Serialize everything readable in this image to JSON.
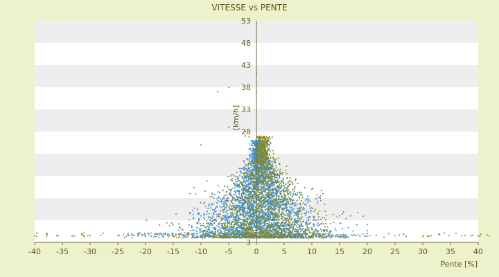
{
  "chart_data": {
    "type": "scatter",
    "title": "VITESSE vs PENTE",
    "xlabel": "Pente [%]",
    "ylabel": "[km/h]",
    "xlim": [
      -40,
      40
    ],
    "ylim": [
      3,
      53
    ],
    "x_ticks": [
      -40,
      -35,
      -30,
      -25,
      -20,
      -15,
      -10,
      -5,
      0,
      5,
      10,
      15,
      20,
      25,
      30,
      35,
      40
    ],
    "y_ticks": [
      3,
      8,
      13,
      18,
      23,
      28,
      33,
      38,
      43,
      48,
      53
    ],
    "y_tick_labels_shown": [
      3,
      28,
      33,
      38,
      43,
      48,
      53
    ],
    "grid": "horizontal alternating bands",
    "colors": {
      "background": "#eef2cc",
      "band_light": "#ffffff",
      "band_dark": "#eeeeee",
      "axis": "#6b6b2a",
      "series_blue": "#3b8fd9",
      "series_olive": "#8a8a1a"
    },
    "series": [
      {
        "color": "#3b8fd9",
        "marker": "small-dot",
        "center_x": 0,
        "center_y": 10,
        "approx_points": 3400,
        "x_range": [
          -25,
          20
        ],
        "y_range": [
          4,
          33
        ],
        "samples": [
          [
            -23,
            4.5
          ],
          [
            -15,
            7
          ],
          [
            -12,
            14
          ],
          [
            -10,
            25
          ],
          [
            -8,
            14
          ],
          [
            -5,
            29
          ],
          [
            -3,
            18
          ],
          [
            -2,
            27
          ],
          [
            0,
            22
          ],
          [
            0,
            10
          ],
          [
            1,
            6
          ],
          [
            2,
            16
          ],
          [
            3,
            12
          ],
          [
            5,
            8
          ],
          [
            7,
            14
          ],
          [
            10,
            6
          ],
          [
            13,
            5
          ],
          [
            17,
            9
          ],
          [
            20,
            7
          ]
        ]
      },
      {
        "color": "#8a8a1a",
        "marker": "small-dot",
        "center_x": 0,
        "center_y": 11,
        "approx_points": 1700,
        "x_range": [
          -40,
          42
        ],
        "y_range": [
          4,
          41
        ],
        "samples": [
          [
            -40,
            4.5
          ],
          [
            -36,
            4.5
          ],
          [
            -30,
            4.5
          ],
          [
            -25,
            4.5
          ],
          [
            -20,
            4.5
          ],
          [
            -7,
            37
          ],
          [
            -5,
            38
          ],
          [
            -4,
            30
          ],
          [
            -2,
            28
          ],
          [
            0,
            41
          ],
          [
            0,
            37
          ],
          [
            2,
            23
          ],
          [
            4,
            22
          ],
          [
            7,
            17
          ],
          [
            10,
            15
          ],
          [
            12,
            14
          ],
          [
            15,
            9
          ],
          [
            20,
            5
          ],
          [
            25,
            4.5
          ],
          [
            30,
            4.5
          ],
          [
            37,
            4.5
          ],
          [
            40,
            4.5
          ],
          [
            42,
            4.5
          ]
        ]
      }
    ]
  }
}
